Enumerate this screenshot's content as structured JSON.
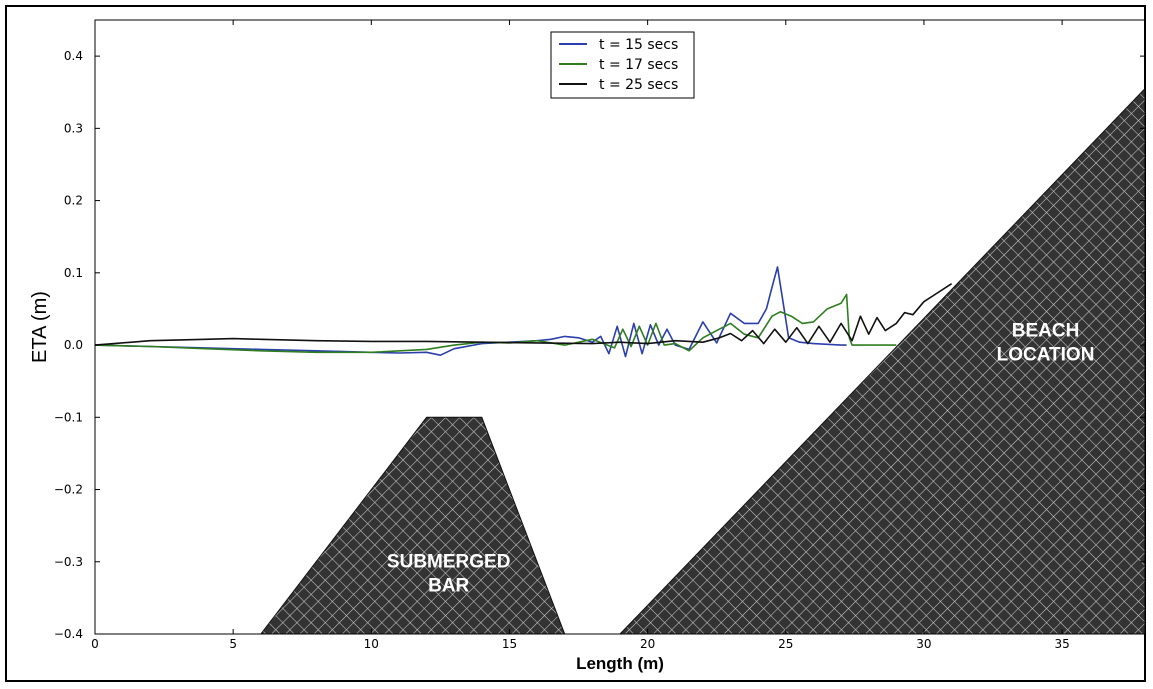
{
  "chart_data": {
    "type": "line",
    "xlabel": "Length (m)",
    "ylabel": "ETA (m)",
    "xlim": [
      0,
      38
    ],
    "ylim": [
      -0.4,
      0.45
    ],
    "x_ticks": [
      "0",
      "5",
      "10",
      "15",
      "20",
      "25",
      "30",
      "35"
    ],
    "y_ticks": [
      "−0.4",
      "−0.3",
      "−0.2",
      "−0.1",
      "0.0",
      "0.1",
      "0.2",
      "0.3",
      "0.4"
    ],
    "legend_position": "top-center",
    "series": [
      {
        "name": "t = 15 secs",
        "color": "#2b3eab",
        "x": [
          0,
          2,
          4,
          6,
          8,
          10,
          11,
          12,
          12.5,
          13,
          14,
          15,
          16,
          16.5,
          17,
          17.5,
          18,
          18.3,
          18.6,
          18.9,
          19.2,
          19.5,
          19.8,
          20.1,
          20.4,
          20.7,
          21,
          21.5,
          22,
          22.5,
          23,
          23.5,
          24,
          24.3,
          24.5,
          24.7,
          24.9,
          25.1,
          25.5,
          26,
          26.5,
          27,
          27.2
        ],
        "y": [
          0,
          -0.002,
          -0.004,
          -0.006,
          -0.008,
          -0.01,
          -0.011,
          -0.01,
          -0.014,
          -0.005,
          0.002,
          0.004,
          0.006,
          0.008,
          0.012,
          0.01,
          0.004,
          0.012,
          -0.012,
          0.026,
          -0.016,
          0.03,
          -0.012,
          0.028,
          0.0,
          0.022,
          0.0,
          -0.006,
          0.032,
          0.003,
          0.044,
          0.03,
          0.03,
          0.05,
          0.08,
          0.108,
          0.06,
          0.01,
          0.004,
          0.002,
          0.001,
          0.0,
          0.0
        ]
      },
      {
        "name": "t = 17 secs",
        "color": "#2e7d1f",
        "x": [
          0,
          2,
          4,
          6,
          8,
          10,
          12,
          13,
          14,
          15,
          16,
          17,
          18,
          18.8,
          19.1,
          19.4,
          19.7,
          20,
          20.3,
          20.6,
          21,
          21.5,
          22,
          22.5,
          23,
          23.5,
          24,
          24.5,
          24.8,
          25.2,
          25.6,
          26,
          26.5,
          27,
          27.2,
          27.3,
          27.4,
          28,
          29
        ],
        "y": [
          0,
          -0.002,
          -0.005,
          -0.008,
          -0.01,
          -0.01,
          -0.006,
          0.0,
          0.004,
          0.003,
          0.006,
          0.0,
          0.008,
          -0.004,
          0.022,
          -0.002,
          0.026,
          0.0,
          0.03,
          0.0,
          0.002,
          -0.008,
          0.01,
          0.02,
          0.03,
          0.015,
          0.01,
          0.04,
          0.046,
          0.04,
          0.03,
          0.032,
          0.05,
          0.058,
          0.07,
          0.01,
          0.0,
          0.0,
          0.0
        ]
      },
      {
        "name": "t = 25 secs",
        "color": "#111111",
        "x": [
          0,
          2,
          4,
          5,
          6,
          8,
          10,
          12,
          14,
          16,
          18,
          19,
          20,
          21,
          22,
          22.6,
          23,
          23.4,
          23.8,
          24.2,
          24.6,
          25,
          25.4,
          25.8,
          26.2,
          26.6,
          27,
          27.4,
          27.7,
          28,
          28.3,
          28.6,
          29,
          29.3,
          29.6,
          30,
          30.4,
          31
        ],
        "y": [
          0,
          0.006,
          0.008,
          0.009,
          0.008,
          0.006,
          0.005,
          0.005,
          0.004,
          0.003,
          0.002,
          0.004,
          0.002,
          0.006,
          0.004,
          0.01,
          0.016,
          0.006,
          0.02,
          0.002,
          0.022,
          0.004,
          0.024,
          0.002,
          0.026,
          0.004,
          0.03,
          0.006,
          0.04,
          0.015,
          0.038,
          0.02,
          0.03,
          0.045,
          0.042,
          0.06,
          0.07,
          0.085
        ]
      }
    ],
    "regions": [
      {
        "label_lines": [
          "SUBMERGED",
          "BAR"
        ],
        "polygon": [
          [
            6,
            -0.4
          ],
          [
            12,
            -0.1
          ],
          [
            14,
            -0.1
          ],
          [
            17,
            -0.4
          ]
        ]
      },
      {
        "label_lines": [
          "BEACH",
          "LOCATION"
        ],
        "polygon": [
          [
            19,
            -0.4
          ],
          [
            38,
            0.355
          ],
          [
            38,
            -0.4
          ]
        ]
      }
    ]
  }
}
